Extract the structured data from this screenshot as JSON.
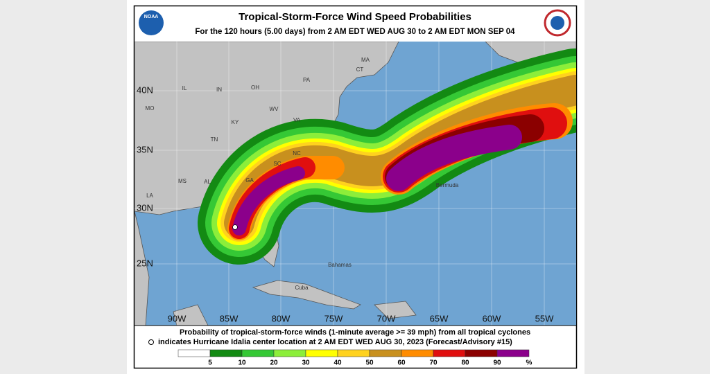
{
  "header": {
    "title": "Tropical-Storm-Force Wind Speed Probabilities",
    "subtitle": "For the 120 hours (5.00 days) from 2 AM EDT WED AUG 30 to 2 AM EDT MON SEP 04",
    "left_logo": "NOAA"
  },
  "map": {
    "lat_labels": [
      "40N",
      "35N",
      "30N",
      "25N"
    ],
    "lon_labels": [
      "90W",
      "85W",
      "80W",
      "75W",
      "70W",
      "65W",
      "60W",
      "55W"
    ],
    "state_labels": [
      "MA",
      "CT",
      "PA",
      "IL",
      "IN",
      "OH",
      "MO",
      "WV",
      "VA",
      "KY",
      "TN",
      "NC",
      "SC",
      "MS",
      "AL",
      "GA",
      "LA"
    ],
    "place_labels": [
      "Bermuda",
      "Bahamas",
      "Cuba"
    ]
  },
  "footer": {
    "line1": "Probability of tropical-storm-force winds (1-minute average >= 39 mph) from all tropical cyclones",
    "line2": "indicates Hurricane Idalia center location at 2 AM EDT WED AUG 30, 2023 (Forecast/Advisory #15)",
    "legend": {
      "values": [
        5,
        10,
        20,
        30,
        40,
        50,
        60,
        70,
        80,
        90
      ],
      "unit": "%",
      "colors": [
        "#ffffff",
        "#138a13",
        "#35c835",
        "#8cee3a",
        "#ffff00",
        "#ffd21e",
        "#c8901e",
        "#ff8c00",
        "#e00f0f",
        "#8b0000",
        "#8b008b"
      ]
    }
  }
}
